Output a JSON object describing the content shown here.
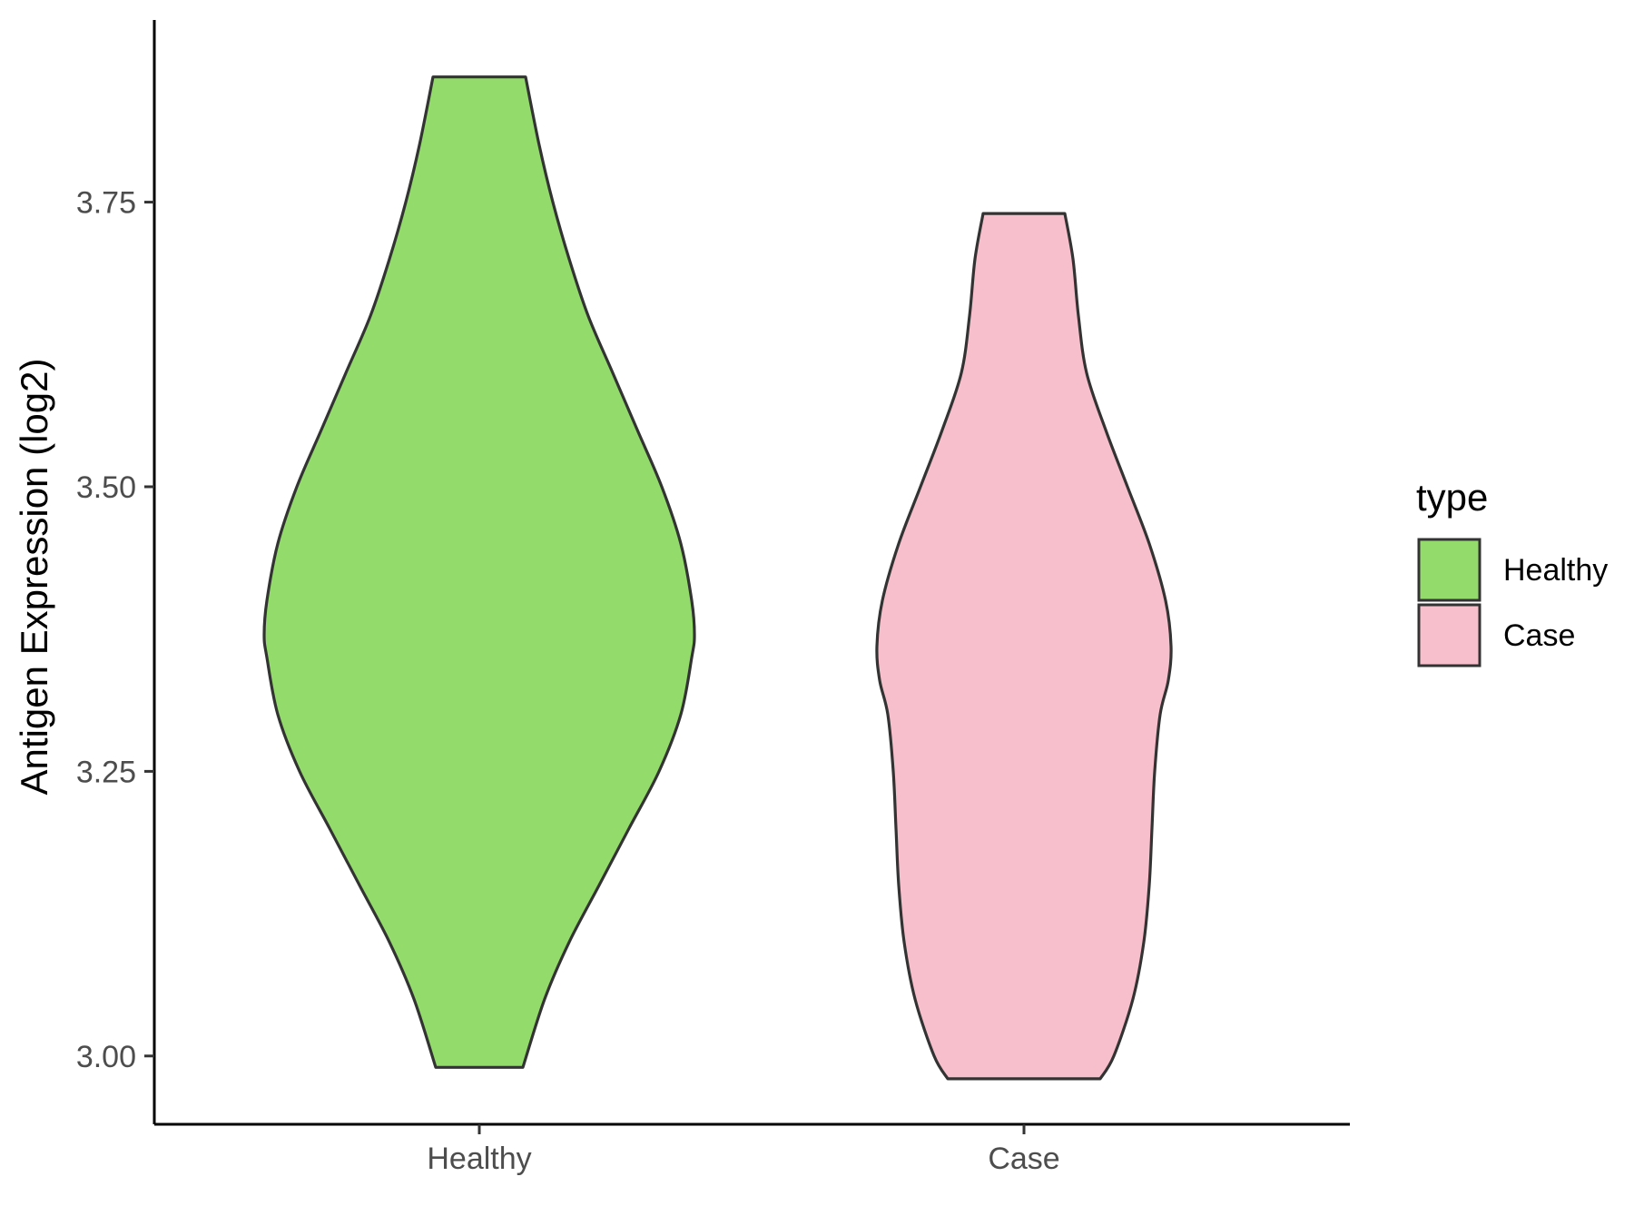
{
  "chart_data": {
    "type": "violin",
    "xlabel": "",
    "ylabel": "Antigen Expression (log2)",
    "ylim": [
      2.94,
      3.91
    ],
    "yticks": [
      3.0,
      3.25,
      3.5,
      3.75
    ],
    "ytick_labels": [
      "3.00",
      "3.25",
      "3.50",
      "3.75"
    ],
    "categories": [
      "Healthy",
      "Case"
    ],
    "grid": false,
    "legend": {
      "title": "type",
      "position": "right",
      "entries": [
        {
          "label": "Healthy",
          "color": "#93DB6B"
        },
        {
          "label": "Case",
          "color": "#F7BFCB"
        }
      ]
    },
    "series": [
      {
        "name": "Healthy",
        "color": "#93DB6B",
        "min": 2.99,
        "max": 3.86,
        "profile": [
          [
            2.99,
            0.16
          ],
          [
            3.05,
            0.24
          ],
          [
            3.1,
            0.33
          ],
          [
            3.15,
            0.44
          ],
          [
            3.2,
            0.55
          ],
          [
            3.25,
            0.66
          ],
          [
            3.3,
            0.74
          ],
          [
            3.35,
            0.78
          ],
          [
            3.37,
            0.79
          ],
          [
            3.4,
            0.78
          ],
          [
            3.45,
            0.74
          ],
          [
            3.5,
            0.67
          ],
          [
            3.55,
            0.58
          ],
          [
            3.6,
            0.49
          ],
          [
            3.65,
            0.4
          ],
          [
            3.7,
            0.33
          ],
          [
            3.75,
            0.27
          ],
          [
            3.8,
            0.22
          ],
          [
            3.86,
            0.17
          ]
        ]
      },
      {
        "name": "Case",
        "color": "#F7BFCB",
        "min": 2.98,
        "max": 3.74,
        "profile": [
          [
            2.98,
            0.28
          ],
          [
            3.0,
            0.33
          ],
          [
            3.05,
            0.4
          ],
          [
            3.1,
            0.44
          ],
          [
            3.15,
            0.46
          ],
          [
            3.2,
            0.47
          ],
          [
            3.25,
            0.48
          ],
          [
            3.3,
            0.5
          ],
          [
            3.33,
            0.53
          ],
          [
            3.36,
            0.54
          ],
          [
            3.4,
            0.52
          ],
          [
            3.45,
            0.46
          ],
          [
            3.5,
            0.38
          ],
          [
            3.55,
            0.3
          ],
          [
            3.6,
            0.23
          ],
          [
            3.65,
            0.2
          ],
          [
            3.7,
            0.18
          ],
          [
            3.74,
            0.15
          ]
        ]
      }
    ]
  }
}
